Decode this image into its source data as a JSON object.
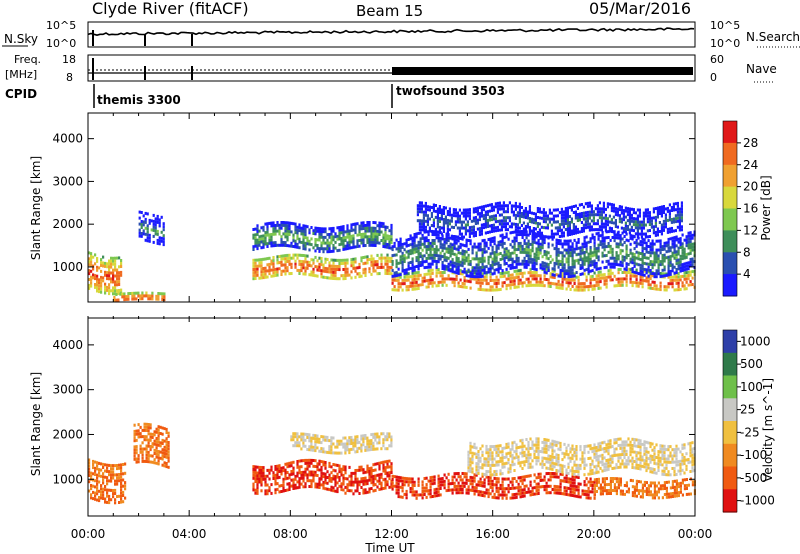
{
  "header": {
    "station": "Clyde River (fitACF)",
    "beam": "Beam 15",
    "date": "05/Mar/2016"
  },
  "noise_panel": {
    "left_label": "N.Sky",
    "right_label": "N.Search",
    "left_ticks": [
      "10^5",
      "10^0"
    ],
    "right_ticks": [
      "10^5",
      "10^0"
    ]
  },
  "freq_panel": {
    "left_label_1": "Freq.",
    "left_label_2": "[MHz]",
    "right_label": "Nave",
    "left_ticks": [
      "18",
      "8"
    ],
    "right_ticks": [
      "60",
      "0"
    ]
  },
  "cpid": {
    "label": "CPID",
    "modes": [
      {
        "name": "themis 3300",
        "start_hour": 0
      },
      {
        "name": "twofsound 3503",
        "start_hour": 12
      }
    ]
  },
  "x_axis": {
    "label": "Time UT",
    "ticks": [
      "00:00",
      "04:00",
      "08:00",
      "12:00",
      "16:00",
      "20:00",
      "00:00"
    ]
  },
  "chart_data": [
    {
      "type": "heatmap",
      "quantity": "Power",
      "xlabel": "Time UT",
      "ylabel": "Slant Range [km]",
      "xlim": [
        0,
        24
      ],
      "ylim": [
        180,
        4600
      ],
      "y_ticks": [
        1000,
        2000,
        3000,
        4000
      ],
      "colorbar_label": "Power [dB]",
      "colorbar_ticks": [
        "4",
        "8",
        "12",
        "16",
        "20",
        "24",
        "28"
      ],
      "colorbar_range": [
        0,
        32
      ],
      "colors": [
        "#1a1aff",
        "#2a4fb0",
        "#3e8e5a",
        "#7ec850",
        "#d8d83c",
        "#f0a030",
        "#f06a20",
        "#e01818"
      ],
      "echo_bands": [
        {
          "t_start": 0.0,
          "t_end": 1.3,
          "r_center": 900,
          "r_width": 900,
          "level": 28
        },
        {
          "t_start": 1.0,
          "t_end": 3.0,
          "r_center": 300,
          "r_width": 200,
          "level": 28
        },
        {
          "t_start": 2.0,
          "t_end": 3.0,
          "r_center": 1900,
          "r_width": 700,
          "level": 10
        },
        {
          "t_start": 6.5,
          "t_end": 12.0,
          "r_center": 1000,
          "r_width": 500,
          "level": 28
        },
        {
          "t_start": 6.5,
          "t_end": 12.0,
          "r_center": 1700,
          "r_width": 600,
          "level": 14
        },
        {
          "t_start": 12.0,
          "t_end": 24.0,
          "r_center": 700,
          "r_width": 450,
          "level": 28
        },
        {
          "t_start": 12.0,
          "t_end": 24.0,
          "r_center": 1300,
          "r_width": 900,
          "level": 12
        },
        {
          "t_start": 13.0,
          "t_end": 23.5,
          "r_center": 2100,
          "r_width": 700,
          "level": 8
        }
      ]
    },
    {
      "type": "heatmap",
      "quantity": "Velocity",
      "xlabel": "Time UT",
      "ylabel": "Slant Range [km]",
      "xlim": [
        0,
        24
      ],
      "ylim": [
        180,
        4600
      ],
      "y_ticks": [
        1000,
        2000,
        3000,
        4000
      ],
      "colorbar_label": "Velocity [m s^-1]",
      "colorbar_ticks": [
        "1000",
        "500",
        "100",
        "25",
        "-25",
        "-100",
        "-500",
        "-1000"
      ],
      "colors": [
        "#2e3fa8",
        "#2f7a4a",
        "#6fc04a",
        "#c8c8c4",
        "#f0c040",
        "#f08a20",
        "#f05a10",
        "#e01010"
      ],
      "echo_bands": [
        {
          "t_start": 0.0,
          "t_end": 1.5,
          "r_center": 1000,
          "r_width": 900,
          "value": -100
        },
        {
          "t_start": 1.8,
          "t_end": 3.2,
          "r_center": 1700,
          "r_width": 900,
          "value": -100
        },
        {
          "t_start": 6.5,
          "t_end": 12.0,
          "r_center": 1050,
          "r_width": 650,
          "value": -500
        },
        {
          "t_start": 8.0,
          "t_end": 12.0,
          "r_center": 1800,
          "r_width": 400,
          "value": 25
        },
        {
          "t_start": 12.0,
          "t_end": 20.0,
          "r_center": 850,
          "r_width": 500,
          "value": -500
        },
        {
          "t_start": 15.0,
          "t_end": 24.0,
          "r_center": 1500,
          "r_width": 700,
          "value": 25
        },
        {
          "t_start": 20.0,
          "t_end": 24.0,
          "r_center": 800,
          "r_width": 400,
          "value": -100
        }
      ]
    }
  ]
}
